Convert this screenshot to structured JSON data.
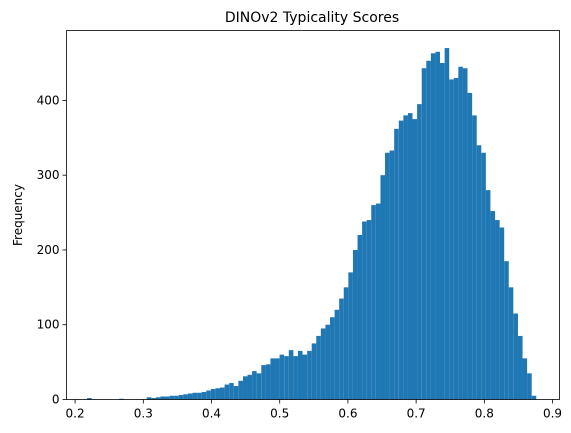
{
  "chart_data": {
    "type": "bar",
    "title": "DINOv2 Typicality Scores",
    "xlabel": "",
    "ylabel": "Frequency",
    "xlim": [
      0.2,
      0.9
    ],
    "ylim": [
      0,
      500
    ],
    "xticks": [
      0.2,
      0.3,
      0.4,
      0.5,
      0.6,
      0.7,
      0.8,
      0.9
    ],
    "xtick_labels": [
      "0.2",
      "0.3",
      "0.4",
      "0.5",
      "0.6",
      "0.7",
      "0.8",
      "0.9"
    ],
    "yticks": [
      0,
      100,
      200,
      300,
      400
    ],
    "ytick_labels": [
      "0",
      "100",
      "200",
      "300",
      "400"
    ],
    "grid": false,
    "bar_color": "#1f77b4",
    "bin_width": 0.00672,
    "bin_starts": [
      0.2176,
      0.2243,
      0.231,
      0.2378,
      0.2445,
      0.2512,
      0.2579,
      0.2646,
      0.2714,
      0.2781,
      0.2848,
      0.2915,
      0.2982,
      0.305,
      0.3117,
      0.3184,
      0.3251,
      0.3318,
      0.3386,
      0.3453,
      0.352,
      0.3587,
      0.3654,
      0.3722,
      0.3789,
      0.3856,
      0.3923,
      0.399,
      0.4058,
      0.4125,
      0.4192,
      0.4259,
      0.4326,
      0.4394,
      0.4461,
      0.4528,
      0.4595,
      0.4662,
      0.473,
      0.4797,
      0.4864,
      0.4931,
      0.4998,
      0.5066,
      0.5133,
      0.52,
      0.5267,
      0.5334,
      0.5402,
      0.5469,
      0.5536,
      0.5603,
      0.567,
      0.5738,
      0.5805,
      0.5872,
      0.5939,
      0.6006,
      0.6074,
      0.6141,
      0.6208,
      0.6275,
      0.6342,
      0.641,
      0.6477,
      0.6544,
      0.6611,
      0.6678,
      0.6746,
      0.6813,
      0.688,
      0.6947,
      0.7014,
      0.7082,
      0.7149,
      0.7216,
      0.7283,
      0.735,
      0.7418,
      0.7485,
      0.7552,
      0.7619,
      0.7686,
      0.7754,
      0.7821,
      0.7888,
      0.7955,
      0.8022,
      0.809,
      0.8157,
      0.8224,
      0.8291,
      0.8358,
      0.8426,
      0.8493,
      0.856,
      0.8627,
      0.8694,
      0.8762,
      0.8829
    ],
    "values": [
      2,
      0,
      0,
      0,
      0,
      0,
      0,
      1,
      0,
      0,
      0,
      0,
      0,
      3,
      2,
      3,
      4,
      4,
      5,
      5,
      6,
      7,
      8,
      9,
      9,
      10,
      12,
      14,
      15,
      16,
      20,
      22,
      18,
      25,
      31,
      33,
      38,
      35,
      46,
      47,
      55,
      55,
      60,
      58,
      66,
      58,
      65,
      60,
      65,
      75,
      85,
      95,
      100,
      110,
      120,
      135,
      150,
      170,
      200,
      220,
      238,
      240,
      260,
      262,
      300,
      330,
      333,
      362,
      373,
      380,
      383,
      375,
      395,
      443,
      453,
      463,
      465,
      450,
      470,
      428,
      430,
      445,
      443,
      410,
      380,
      340,
      330,
      280,
      252,
      240,
      230,
      185,
      150,
      115,
      85,
      55,
      35,
      5,
      0,
      0
    ]
  }
}
